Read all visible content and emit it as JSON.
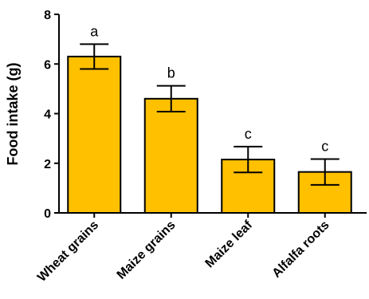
{
  "chart_data": {
    "type": "bar",
    "title": "",
    "xlabel": "",
    "ylabel": "Food intake (g)",
    "ylim": [
      0,
      8
    ],
    "yticks": [
      "0",
      "2",
      "4",
      "6",
      "8"
    ],
    "categories": [
      "Wheat grains",
      "Maize grains",
      "Maize leaf",
      "Alfalfa roots"
    ],
    "values": [
      6.3,
      4.6,
      2.15,
      1.65
    ],
    "errors": [
      0.5,
      0.52,
      0.52,
      0.52
    ],
    "significance_letters": [
      "a",
      "b",
      "c",
      "c"
    ],
    "bar_color": "#FFC000",
    "bar_edge_color": "#000000",
    "grid": false,
    "legend": "none"
  }
}
